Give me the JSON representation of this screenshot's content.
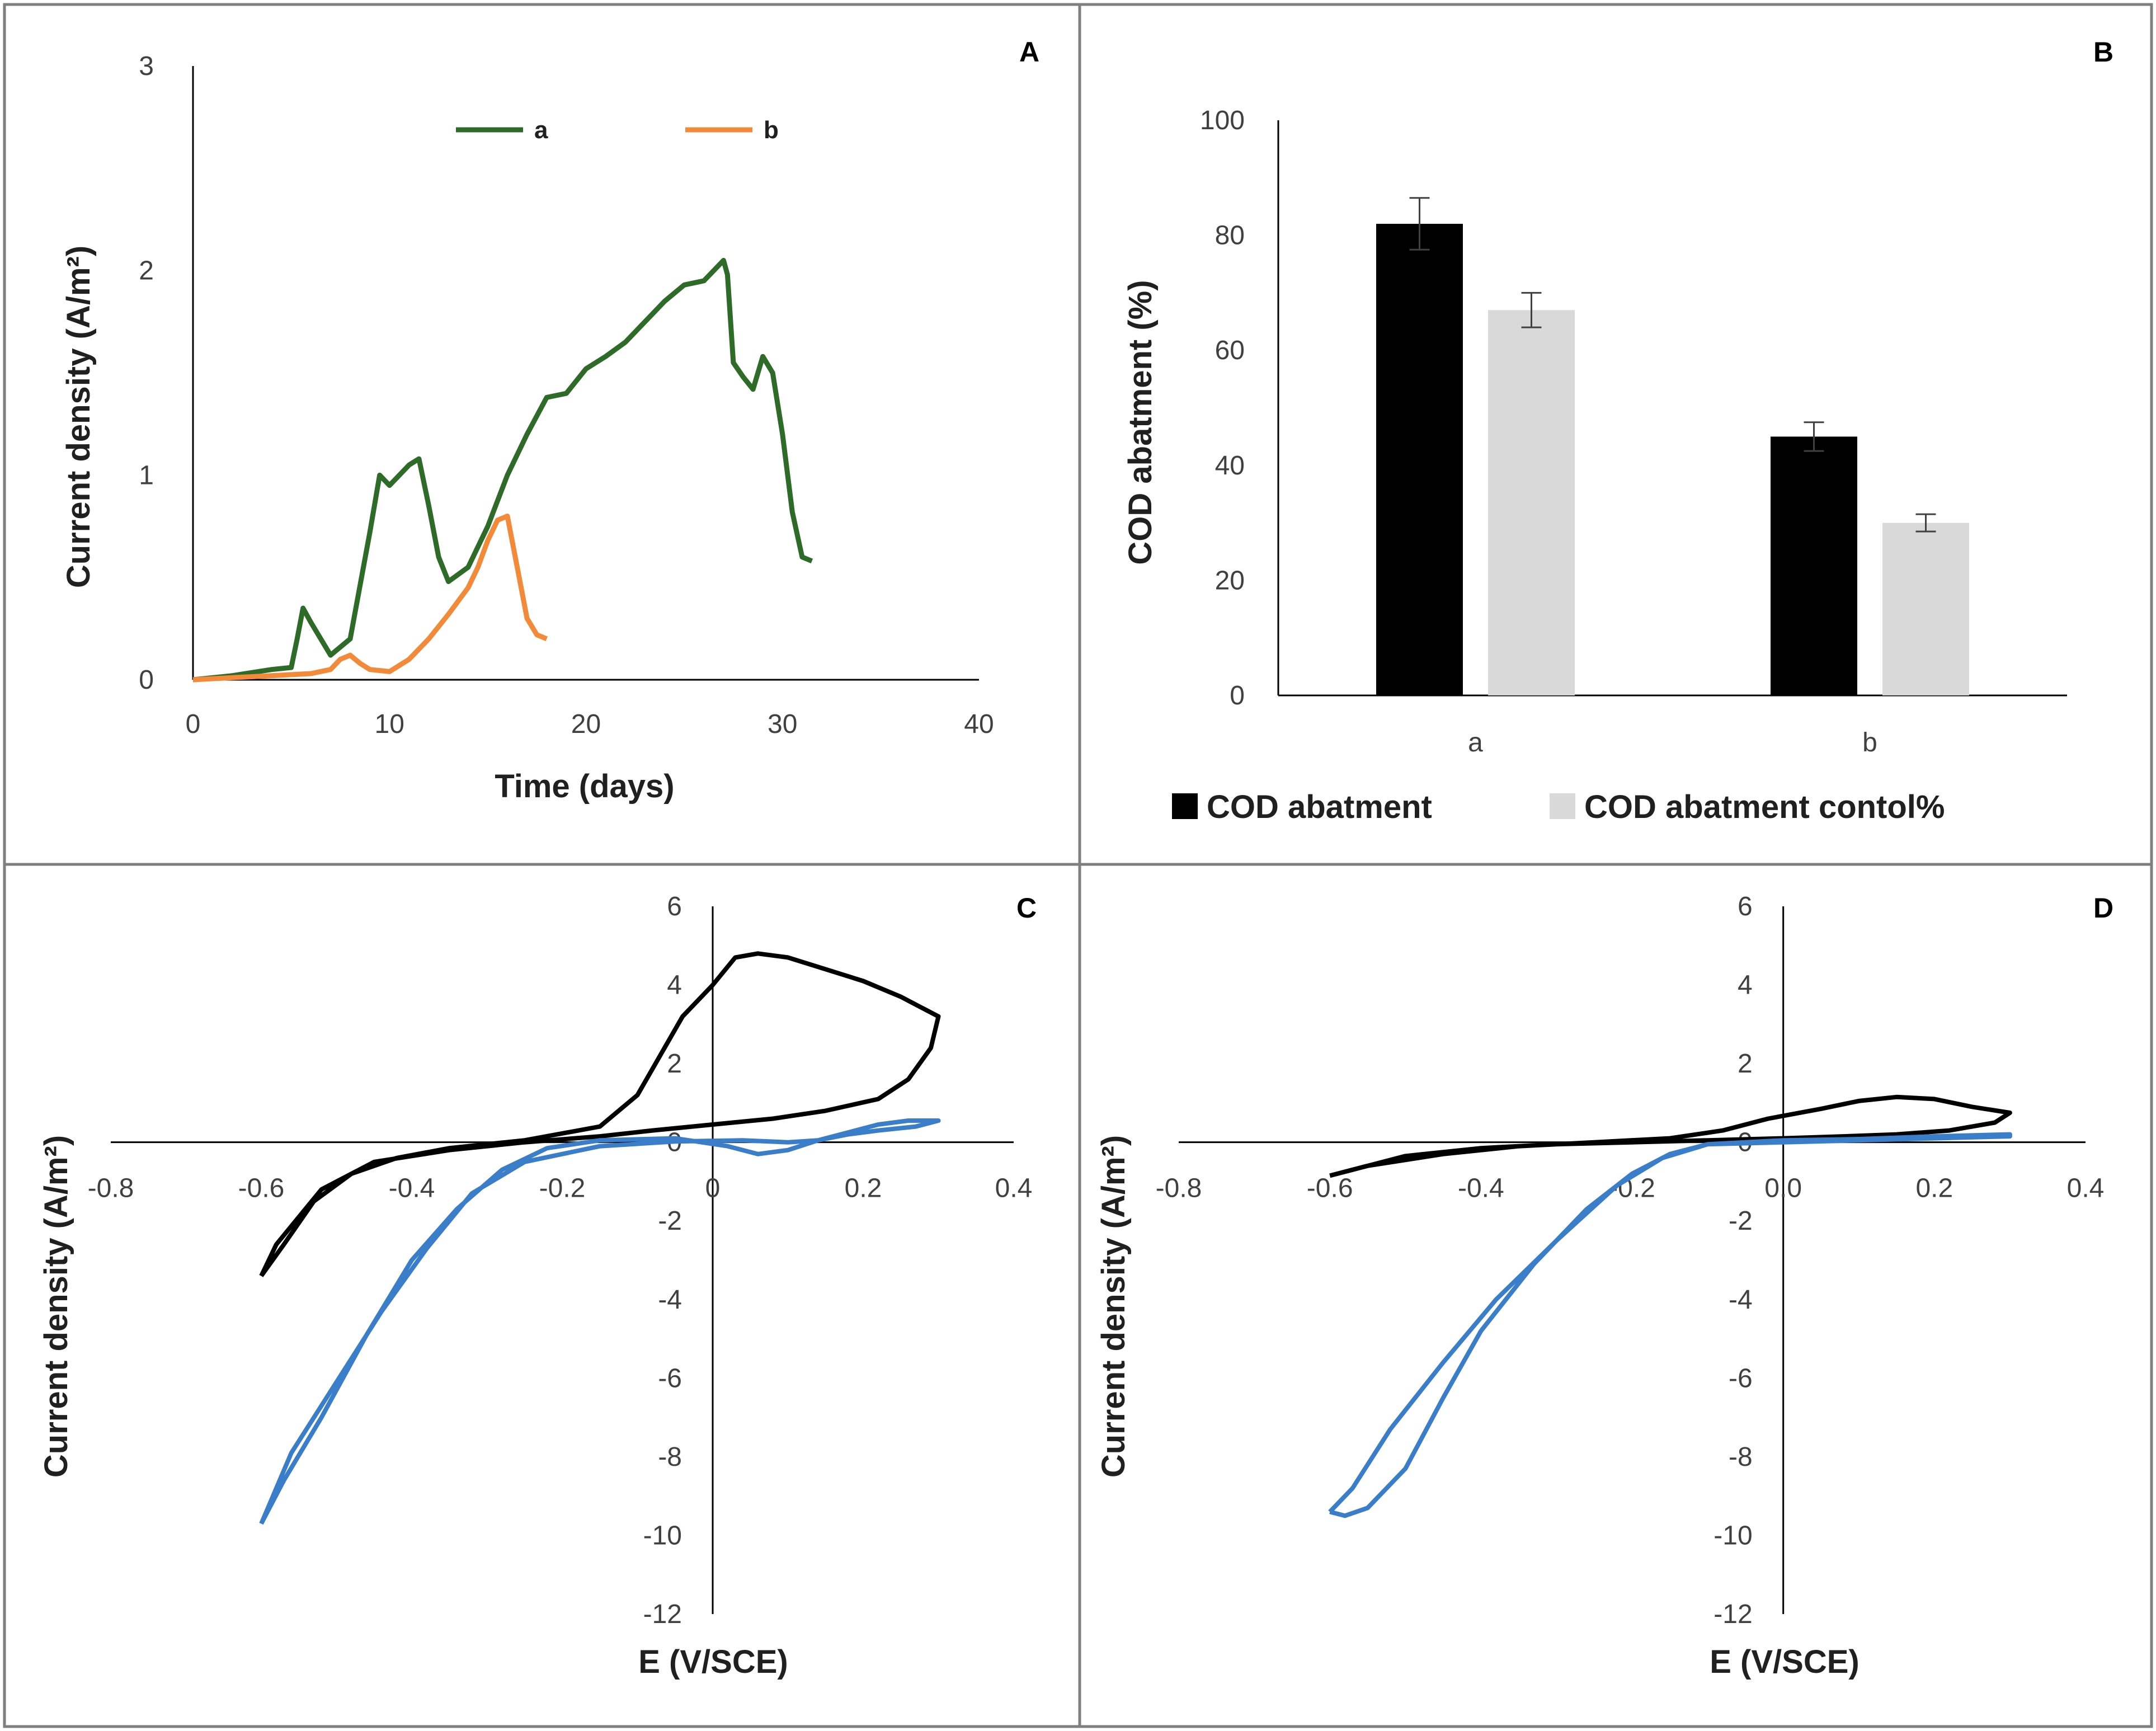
{
  "chart_data": [
    {
      "panel": "A",
      "type": "line",
      "xlabel": "Time (days)",
      "ylabel": "Current density (A/m²)",
      "xlim": [
        0,
        40
      ],
      "ylim": [
        0,
        3
      ],
      "xticks": [
        0,
        10,
        20,
        30,
        40
      ],
      "yticks": [
        0,
        1,
        2,
        3
      ],
      "colors": [
        "#2e6b28",
        "#f28a3a"
      ],
      "series": [
        {
          "name": "a",
          "x": [
            0,
            2,
            4,
            5,
            5.3,
            5.6,
            6,
            7,
            8,
            9,
            9.5,
            10,
            11,
            11.5,
            12,
            12.5,
            13,
            14,
            15,
            16,
            17,
            18,
            19,
            20,
            21,
            22,
            23,
            24,
            25,
            26,
            27,
            27.2,
            27.5,
            28,
            28.5,
            29,
            29.5,
            30,
            30.5,
            31,
            31.5
          ],
          "y": [
            0,
            0.02,
            0.05,
            0.06,
            0.2,
            0.35,
            0.28,
            0.12,
            0.2,
            0.72,
            1.0,
            0.95,
            1.05,
            1.08,
            0.85,
            0.6,
            0.48,
            0.55,
            0.75,
            1.0,
            1.2,
            1.38,
            1.4,
            1.52,
            1.58,
            1.65,
            1.75,
            1.85,
            1.93,
            1.95,
            2.05,
            1.98,
            1.55,
            1.48,
            1.42,
            1.58,
            1.5,
            1.2,
            0.82,
            0.6,
            0.58
          ]
        },
        {
          "name": "b",
          "x": [
            0,
            2,
            4,
            6,
            7,
            7.5,
            8,
            8.5,
            9,
            10,
            11,
            12,
            13,
            14,
            14.5,
            15,
            15.5,
            16,
            16.5,
            17,
            17.5,
            18
          ],
          "y": [
            0,
            0.01,
            0.02,
            0.03,
            0.05,
            0.1,
            0.12,
            0.08,
            0.05,
            0.04,
            0.1,
            0.2,
            0.32,
            0.45,
            0.55,
            0.68,
            0.78,
            0.8,
            0.55,
            0.3,
            0.22,
            0.2
          ]
        }
      ],
      "legend": [
        "a",
        "b"
      ]
    },
    {
      "panel": "B",
      "type": "bar",
      "ylabel": "COD abatment (%)",
      "ylim": [
        0,
        100
      ],
      "yticks": [
        0,
        20,
        40,
        60,
        80,
        100
      ],
      "categories": [
        "a",
        "b"
      ],
      "colors": [
        "#000000",
        "#d9d9d9"
      ],
      "series": [
        {
          "name": "COD abatment",
          "values": [
            82,
            45
          ],
          "errors": [
            4.5,
            2.5
          ]
        },
        {
          "name": "COD abatment contol%",
          "values": [
            67,
            30
          ],
          "errors": [
            3,
            1.5
          ]
        }
      ]
    },
    {
      "panel": "C",
      "type": "line",
      "xlabel": "E (V/SCE)",
      "ylabel": "Current density (A/m²)",
      "xlim": [
        -0.8,
        0.4
      ],
      "ylim": [
        -12,
        6
      ],
      "xticks": [
        -0.8,
        -0.6,
        -0.4,
        -0.2,
        0,
        0.2,
        0.4
      ],
      "xtick_labels": [
        "-0.8",
        "-0.6",
        "-0.4",
        "-0.2",
        "0",
        "0.2",
        "0.4"
      ],
      "yticks": [
        -12,
        -10,
        -8,
        -6,
        -4,
        -2,
        0,
        2,
        4,
        6
      ],
      "colors": [
        "#000000",
        "#3a7dc9"
      ],
      "series": [
        {
          "name": "black",
          "x": [
            -0.6,
            -0.57,
            -0.53,
            -0.48,
            -0.42,
            -0.35,
            -0.25,
            -0.15,
            -0.1,
            -0.07,
            -0.04,
            0,
            0.03,
            0.06,
            0.1,
            0.15,
            0.2,
            0.25,
            0.3,
            0.29,
            0.26,
            0.22,
            0.15,
            0.08,
            0,
            -0.08,
            -0.15,
            -0.25,
            -0.35,
            -0.45,
            -0.52,
            -0.58,
            -0.6
          ],
          "y": [
            -3.4,
            -2.6,
            -1.5,
            -0.8,
            -0.4,
            -0.15,
            0.05,
            0.4,
            1.2,
            2.2,
            3.2,
            4.0,
            4.7,
            4.8,
            4.7,
            4.4,
            4.1,
            3.7,
            3.2,
            2.4,
            1.6,
            1.1,
            0.8,
            0.6,
            0.45,
            0.3,
            0.15,
            0.0,
            -0.2,
            -0.5,
            -1.2,
            -2.6,
            -3.4
          ]
        },
        {
          "name": "blue",
          "x": [
            -0.6,
            -0.57,
            -0.52,
            -0.46,
            -0.4,
            -0.34,
            -0.28,
            -0.22,
            -0.15,
            -0.05,
            0.02,
            0.06,
            0.1,
            0.14,
            0.18,
            0.22,
            0.26,
            0.3,
            0.27,
            0.22,
            0.18,
            0.14,
            0.1,
            0.04,
            -0.05,
            -0.15,
            -0.25,
            -0.32,
            -0.38,
            -0.44,
            -0.5,
            -0.56,
            -0.6
          ],
          "y": [
            -9.7,
            -8.6,
            -7.0,
            -4.9,
            -3.0,
            -1.7,
            -0.7,
            -0.15,
            0.05,
            0.1,
            -0.1,
            -0.3,
            -0.2,
            0.05,
            0.25,
            0.45,
            0.55,
            0.55,
            0.4,
            0.3,
            0.2,
            0.05,
            0.0,
            0.05,
            0.02,
            -0.1,
            -0.5,
            -1.3,
            -2.7,
            -4.3,
            -6.1,
            -7.9,
            -9.7
          ]
        }
      ]
    },
    {
      "panel": "D",
      "type": "line",
      "xlabel": "E (V/SCE)",
      "ylabel": "Current density (A/m²)",
      "xlim": [
        -0.8,
        0.4
      ],
      "ylim": [
        -12,
        6
      ],
      "xticks": [
        -0.8,
        -0.6,
        -0.4,
        -0.2,
        0,
        0.2,
        0.4
      ],
      "xtick_labels": [
        "-0.8",
        "-0.6",
        "-0.4",
        "-0.2",
        "0.0",
        "0.2",
        "0.4"
      ],
      "yticks": [
        -12,
        -10,
        -8,
        -6,
        -4,
        -2,
        0,
        2,
        4,
        6
      ],
      "colors": [
        "#000000",
        "#3a7dc9"
      ],
      "series": [
        {
          "name": "black",
          "x": [
            -0.6,
            -0.55,
            -0.45,
            -0.35,
            -0.25,
            -0.15,
            -0.08,
            -0.02,
            0.05,
            0.1,
            0.15,
            0.2,
            0.25,
            0.3,
            0.28,
            0.22,
            0.15,
            0.08,
            0.0,
            -0.1,
            -0.2,
            -0.3,
            -0.4,
            -0.5,
            -0.6
          ],
          "y": [
            -0.85,
            -0.6,
            -0.3,
            -0.1,
            0.0,
            0.1,
            0.3,
            0.6,
            0.85,
            1.05,
            1.15,
            1.1,
            0.9,
            0.75,
            0.5,
            0.3,
            0.2,
            0.15,
            0.1,
            0.05,
            0.0,
            -0.05,
            -0.15,
            -0.35,
            -0.85
          ]
        },
        {
          "name": "blue",
          "x": [
            -0.6,
            -0.58,
            -0.55,
            -0.5,
            -0.45,
            -0.4,
            -0.33,
            -0.26,
            -0.2,
            -0.15,
            -0.1,
            0.0,
            0.1,
            0.2,
            0.3,
            0.3,
            0.2,
            0.1,
            0.0,
            -0.1,
            -0.16,
            -0.22,
            -0.3,
            -0.38,
            -0.45,
            -0.52,
            -0.57,
            -0.6
          ],
          "y": [
            -9.4,
            -9.5,
            -9.3,
            -8.3,
            -6.5,
            -4.8,
            -3.1,
            -1.7,
            -0.8,
            -0.3,
            -0.05,
            0.0,
            0.05,
            0.1,
            0.15,
            0.2,
            0.15,
            0.08,
            0.05,
            -0.05,
            -0.4,
            -1.1,
            -2.5,
            -4.0,
            -5.6,
            -7.3,
            -8.8,
            -9.4
          ]
        }
      ]
    }
  ]
}
